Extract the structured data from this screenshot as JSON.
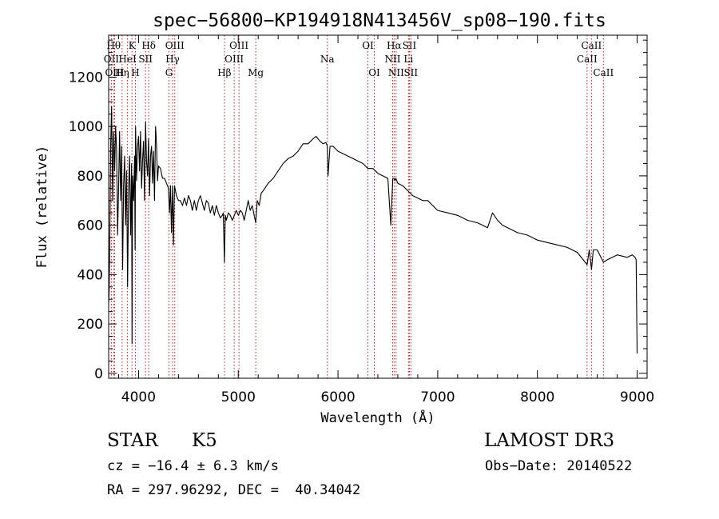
{
  "chart_data": {
    "type": "line",
    "title": "spec−56800−KP194918N413456V_sp08−190.fits",
    "xlabel": "Wavelength (Å)",
    "ylabel": "Flux (relative)",
    "xlim": [
      3700,
      9100
    ],
    "ylim": [
      -20,
      1370
    ],
    "x_ticks": [
      4000,
      5000,
      6000,
      7000,
      8000,
      9000
    ],
    "x_tick_labels": [
      "4000",
      "5000",
      "6000",
      "7000",
      "8000",
      "9000"
    ],
    "y_ticks": [
      0,
      200,
      400,
      600,
      800,
      1000,
      1200
    ],
    "y_tick_labels": [
      "0",
      "200",
      "400",
      "600",
      "800",
      "1000",
      "1200"
    ],
    "series": [
      {
        "name": "flux",
        "x": [
          3700,
          3705,
          3712,
          3720,
          3730,
          3740,
          3750,
          3760,
          3770,
          3780,
          3790,
          3800,
          3810,
          3820,
          3830,
          3840,
          3850,
          3860,
          3870,
          3880,
          3890,
          3900,
          3910,
          3920,
          3930,
          3935,
          3940,
          3950,
          3960,
          3965,
          3970,
          3980,
          3990,
          4000,
          4010,
          4020,
          4030,
          4040,
          4050,
          4060,
          4070,
          4080,
          4090,
          4100,
          4110,
          4120,
          4130,
          4140,
          4150,
          4160,
          4170,
          4180,
          4190,
          4200,
          4220,
          4240,
          4260,
          4280,
          4300,
          4310,
          4320,
          4330,
          4340,
          4350,
          4360,
          4380,
          4400,
          4420,
          4440,
          4460,
          4480,
          4500,
          4520,
          4540,
          4560,
          4580,
          4600,
          4620,
          4640,
          4660,
          4680,
          4700,
          4720,
          4740,
          4760,
          4780,
          4800,
          4820,
          4840,
          4850,
          4861,
          4870,
          4880,
          4900,
          4920,
          4940,
          4960,
          4980,
          5000,
          5020,
          5040,
          5060,
          5080,
          5100,
          5120,
          5140,
          5160,
          5175,
          5190,
          5210,
          5230,
          5250,
          5300,
          5350,
          5400,
          5450,
          5500,
          5550,
          5600,
          5650,
          5700,
          5750,
          5780,
          5800,
          5820,
          5850,
          5880,
          5893,
          5900,
          5920,
          5950,
          6000,
          6050,
          6100,
          6150,
          6200,
          6250,
          6300,
          6350,
          6400,
          6450,
          6500,
          6530,
          6550,
          6563,
          6570,
          6580,
          6600,
          6650,
          6700,
          6750,
          6800,
          6850,
          6900,
          6950,
          7000,
          7100,
          7200,
          7300,
          7400,
          7500,
          7550,
          7600,
          7650,
          7700,
          7800,
          7900,
          8000,
          8100,
          8200,
          8300,
          8400,
          8498,
          8520,
          8542,
          8560,
          8600,
          8662,
          8700,
          8800,
          8900,
          8950,
          8980,
          8990,
          9000
        ],
        "values": [
          280,
          330,
          560,
          920,
          1080,
          700,
          980,
          820,
          1000,
          900,
          560,
          760,
          980,
          700,
          920,
          420,
          760,
          880,
          600,
          820,
          350,
          750,
          880,
          560,
          850,
          120,
          800,
          700,
          880,
          500,
          1000,
          780,
          920,
          960,
          820,
          980,
          750,
          860,
          940,
          700,
          1020,
          860,
          800,
          950,
          720,
          880,
          920,
          770,
          900,
          700,
          1000,
          930,
          780,
          840,
          830,
          790,
          790,
          770,
          750,
          650,
          760,
          570,
          760,
          520,
          760,
          720,
          700,
          700,
          680,
          710,
          680,
          720,
          700,
          660,
          700,
          660,
          700,
          720,
          690,
          660,
          700,
          690,
          650,
          680,
          640,
          680,
          650,
          630,
          640,
          650,
          450,
          640,
          620,
          650,
          640,
          620,
          640,
          660,
          640,
          660,
          650,
          620,
          660,
          700,
          660,
          680,
          640,
          610,
          700,
          680,
          730,
          740,
          770,
          790,
          820,
          850,
          870,
          880,
          900,
          930,
          930,
          950,
          960,
          950,
          940,
          930,
          935,
          920,
          800,
          920,
          920,
          900,
          890,
          880,
          870,
          860,
          850,
          830,
          830,
          810,
          800,
          790,
          600,
          790,
          790,
          780,
          790,
          770,
          760,
          740,
          720,
          710,
          700,
          700,
          680,
          660,
          650,
          640,
          620,
          610,
          590,
          650,
          620,
          600,
          590,
          570,
          560,
          540,
          530,
          520,
          510,
          490,
          440,
          500,
          420,
          500,
          500,
          450,
          460,
          480,
          470,
          480,
          470,
          460,
          80
        ]
      }
    ],
    "line_marks": [
      {
        "label": "OII",
        "x": 3727,
        "row": 1
      },
      {
        "label": "Hθ",
        "x": 3750,
        "row": 0
      },
      {
        "label": "OIII",
        "x": 3760,
        "row": 2
      },
      {
        "label": "Hη",
        "x": 3835,
        "row": 2
      },
      {
        "label": "HeI",
        "x": 3889,
        "row": 1
      },
      {
        "label": "K",
        "x": 3934,
        "row": 0
      },
      {
        "label": "H",
        "x": 3968,
        "row": 2
      },
      {
        "label": "SII",
        "x": 4070,
        "row": 1
      },
      {
        "label": "Hδ",
        "x": 4102,
        "row": 0
      },
      {
        "label": "G",
        "x": 4305,
        "row": 2
      },
      {
        "label": "Hγ",
        "x": 4341,
        "row": 1
      },
      {
        "label": "OIII",
        "x": 4363,
        "row": 0
      },
      {
        "label": "Hβ",
        "x": 4861,
        "row": 2
      },
      {
        "label": "OIII",
        "x": 4959,
        "row": 1
      },
      {
        "label": "OIII",
        "x": 5007,
        "row": 0
      },
      {
        "label": "Mg",
        "x": 5175,
        "row": 2
      },
      {
        "label": "Na",
        "x": 5893,
        "row": 1
      },
      {
        "label": "OI",
        "x": 6300,
        "row": 0
      },
      {
        "label": "OI",
        "x": 6364,
        "row": 2
      },
      {
        "label": "NII",
        "x": 6548,
        "row": 1
      },
      {
        "label": "Hα",
        "x": 6563,
        "row": 0
      },
      {
        "label": "NII",
        "x": 6583,
        "row": 2
      },
      {
        "label": "Li",
        "x": 6707,
        "row": 1
      },
      {
        "label": "SII",
        "x": 6716,
        "row": 0
      },
      {
        "label": "SII",
        "x": 6731,
        "row": 2
      },
      {
        "label": "CaII",
        "x": 8498,
        "row": 1
      },
      {
        "label": "CaII",
        "x": 8542,
        "row": 0
      },
      {
        "label": "CaII",
        "x": 8662,
        "row": 2
      }
    ]
  },
  "info": {
    "object_class": "STAR",
    "subclass": "K5",
    "survey": "LAMOST DR3",
    "redshift": "cz = −16.4 ± 6.3 km/s",
    "obs_date": "Obs−Date: 20140522",
    "coords": "RA = 297.96292, DEC =  40.34042"
  }
}
